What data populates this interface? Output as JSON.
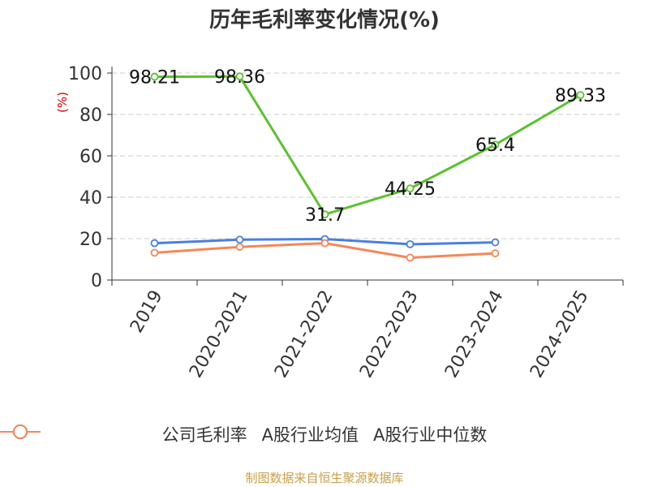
{
  "title": "历年毛利率变化情况(%)",
  "source": "制图数据来自恒生聚源数据库",
  "chart_data": {
    "type": "line",
    "title": "历年毛利率变化情况(%)",
    "ylabel": "(%)",
    "ylim": [
      0,
      100
    ],
    "yticks": [
      0,
      20,
      40,
      60,
      80,
      100
    ],
    "grid": true,
    "legend_position": "bottom",
    "categories": [
      "2019",
      "2020-2021",
      "2021-2022",
      "2022-2023",
      "2023-2024",
      "2024-2025"
    ],
    "series": [
      {
        "name": "公司毛利率",
        "color": "#5bc22e",
        "values": [
          98.21,
          98.36,
          31.7,
          44.25,
          65.4,
          89.33
        ],
        "labels": [
          "98.21",
          "98.36",
          "31.7",
          "44.25",
          "65.4",
          "89.33"
        ]
      },
      {
        "name": "A股行业均值",
        "color": "#4a7fe0",
        "values": [
          17.8,
          19.5,
          19.8,
          17.3,
          18.2,
          null
        ]
      },
      {
        "name": "A股行业中位数",
        "color": "#f5875a",
        "values": [
          13.2,
          16.0,
          17.8,
          10.8,
          12.9,
          null
        ]
      }
    ]
  }
}
